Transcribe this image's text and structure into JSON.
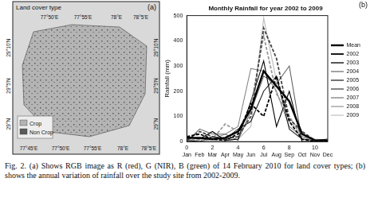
{
  "map_panel": {
    "panel_label": "(a)",
    "title": "Land cover type",
    "lon_labels_top": [
      "77°50'E",
      "77°55'E",
      "78°E",
      "78°5'E"
    ],
    "lon_labels_bottom": [
      "77°45'E",
      "77°50'E",
      "77°55'E",
      "78°E",
      "78°5'E"
    ],
    "lat_labels_left": [
      "29°10'N",
      "29°5'N",
      "29°N"
    ],
    "lat_labels_right": [
      "29°10'N",
      "29°5'N",
      "29°N"
    ],
    "legend": [
      {
        "name": "Crop",
        "color": "#b4b4b4"
      },
      {
        "name": "Non Crop",
        "color": "#5a5a5a"
      }
    ]
  },
  "chart_data": {
    "type": "line",
    "panel_label": "(b)",
    "title": "Monthly Rainfall for year 2002 to 2009",
    "y_label": "Rainfall (mm)",
    "x": [
      0,
      1,
      2,
      3,
      4,
      5,
      6,
      7,
      8,
      9,
      10,
      11
    ],
    "xlim": [
      0,
      11
    ],
    "xticks": [
      {
        "value": 0,
        "label": "0\nJan"
      },
      {
        "value": 1,
        "label": "Feb"
      },
      {
        "value": 2,
        "label": "2\nMar"
      },
      {
        "value": 3,
        "label": "Apr"
      },
      {
        "value": 4,
        "label": "4\nMay"
      },
      {
        "value": 5,
        "label": "Jun"
      },
      {
        "value": 6,
        "label": "6\nJul"
      },
      {
        "value": 7,
        "label": "Aug"
      },
      {
        "value": 8,
        "label": "8\nSep"
      },
      {
        "value": 9,
        "label": "Oct"
      },
      {
        "value": 10,
        "label": "10\nNov"
      },
      {
        "value": 11,
        "label": "Dec"
      }
    ],
    "ylim": [
      0,
      500
    ],
    "yticks": [
      0,
      100,
      200,
      300,
      400,
      500
    ],
    "grid": false,
    "legend": "right",
    "series": [
      {
        "name": "Mean",
        "color": "#000000",
        "line_style": "solid",
        "values": [
          15,
          15,
          10,
          15,
          40,
          130,
          280,
          220,
          160,
          30,
          5,
          5
        ]
      },
      {
        "name": "2002",
        "color": "#000000",
        "line_style": "dashed",
        "values": [
          20,
          30,
          10,
          5,
          30,
          150,
          100,
          260,
          80,
          10,
          0,
          0
        ]
      },
      {
        "name": "2003",
        "color": "#444444",
        "line_style": "dashed",
        "values": [
          5,
          40,
          20,
          10,
          20,
          100,
          450,
          330,
          90,
          40,
          5,
          5
        ]
      },
      {
        "name": "2004",
        "color": "#999999",
        "line_style": "dashed",
        "values": [
          10,
          5,
          10,
          70,
          40,
          140,
          420,
          190,
          100,
          20,
          5,
          0
        ]
      },
      {
        "name": "2005",
        "color": "#000000",
        "line_style": "solid",
        "values": [
          20,
          10,
          40,
          5,
          10,
          160,
          320,
          60,
          200,
          0,
          0,
          5
        ]
      },
      {
        "name": "2006",
        "color": "#222222",
        "line_style": "solid",
        "values": [
          5,
          0,
          20,
          10,
          50,
          80,
          200,
          260,
          50,
          10,
          5,
          10
        ]
      },
      {
        "name": "2007",
        "color": "#666666",
        "line_style": "solid",
        "values": [
          0,
          50,
          30,
          30,
          5,
          120,
          260,
          230,
          300,
          0,
          0,
          5
        ]
      },
      {
        "name": "2008",
        "color": "#888888",
        "line_style": "solid",
        "values": [
          10,
          0,
          10,
          30,
          60,
          290,
          280,
          200,
          60,
          20,
          0,
          0
        ]
      },
      {
        "name": "2009",
        "color": "#bbbbbb",
        "line_style": "solid",
        "values": [
          0,
          10,
          5,
          5,
          10,
          60,
          490,
          240,
          80,
          30,
          10,
          5
        ]
      }
    ]
  },
  "caption": "Fig. 2. (a) Shows RGB image as R (red), G (NIR), B (green) of 14 February 2010 for land cover types; (b) shows the annual variation of rainfall over the study site from 2002-2009."
}
